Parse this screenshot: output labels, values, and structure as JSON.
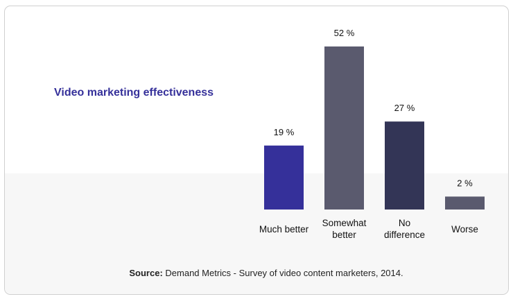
{
  "chart_data": {
    "type": "bar",
    "title": "Video marketing effectiveness",
    "categories": [
      [
        "Much better"
      ],
      [
        "Somewhat",
        "better"
      ],
      [
        "No",
        "difference"
      ],
      [
        "Worse"
      ]
    ],
    "values": [
      19,
      52,
      27,
      2
    ],
    "value_labels": [
      "19 %",
      "52 %",
      "27 %",
      "2 %"
    ],
    "colors": [
      "#35309a",
      "#5a5a6e",
      "#333556",
      "#5a5a6e"
    ],
    "unit": "%",
    "grid": false,
    "axes_visible": false
  },
  "source": {
    "label": "Source:",
    "text": " Demand Metrics - Survey of video content marketers, 2014."
  }
}
